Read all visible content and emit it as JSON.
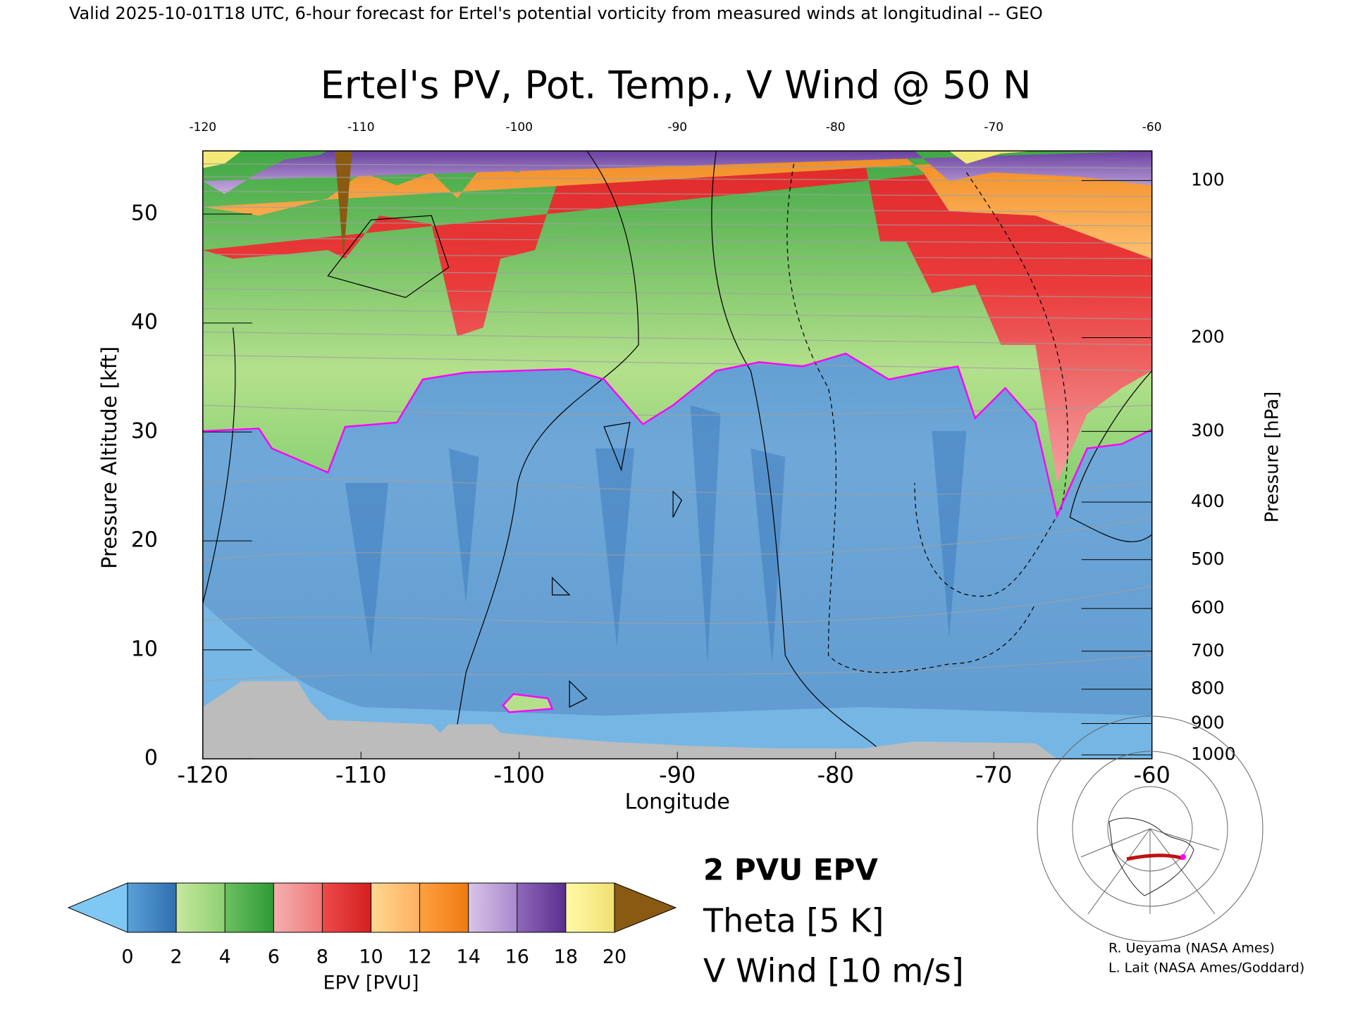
{
  "chart_data": {
    "type": "contour",
    "header": "Valid 2025-10-01T18 UTC, 6-hour forecast for Ertel's potential vorticity from measured winds at longitudinal -- GEO",
    "title": "Ertel's PV, Pot. Temp., V Wind @ 50 N",
    "xlabel": "Longitude",
    "ylabel": "Pressure Altitude [kft]",
    "y2label": "Pressure [hPa]",
    "xlim": [
      -120,
      -60
    ],
    "xticks": [
      -120,
      -110,
      -100,
      -90,
      -80,
      -70,
      -60
    ],
    "ylim": [
      0,
      55.8
    ],
    "yticks": [
      0,
      10,
      20,
      30,
      40,
      50
    ],
    "y2lim": [
      1013.25,
      87.8
    ],
    "y2scale": "pressure-altitude",
    "y2ticks": [
      100,
      200,
      300,
      400,
      500,
      600,
      700,
      800,
      900,
      1000
    ],
    "colorbar": {
      "label": "EPV [PVU]",
      "ticks": [
        0,
        2,
        4,
        6,
        8,
        10,
        12,
        14,
        16,
        18,
        20
      ],
      "colors": [
        [
          "#5aa0d8",
          "#2f6fb0"
        ],
        [
          "#c8e8a0",
          "#8cd070"
        ],
        [
          "#6cc060",
          "#2e9a36"
        ],
        [
          "#f4b0b0",
          "#f07878"
        ],
        [
          "#ee4a4a",
          "#d42020"
        ],
        [
          "#ffd890",
          "#ffb060"
        ],
        [
          "#ffa040",
          "#f07a10"
        ],
        [
          "#d8c4e8",
          "#a888cc"
        ],
        [
          "#9068b8",
          "#5a2e90"
        ],
        [
          "#fffaa8",
          "#f0e070"
        ]
      ],
      "under": "#80c8f4",
      "over": "#8a5a12"
    },
    "legend": [
      {
        "label": "2 PVU EPV",
        "color": "#ff00ff"
      },
      {
        "label": "Theta [5 K]",
        "color": "#b0b0b0"
      },
      {
        "label": "V Wind [10 m/s]",
        "color": "#000000"
      }
    ],
    "credits": [
      "R. Ueyama (NASA Ames)",
      "L. Lait (NASA Ames/Goddard)"
    ]
  }
}
